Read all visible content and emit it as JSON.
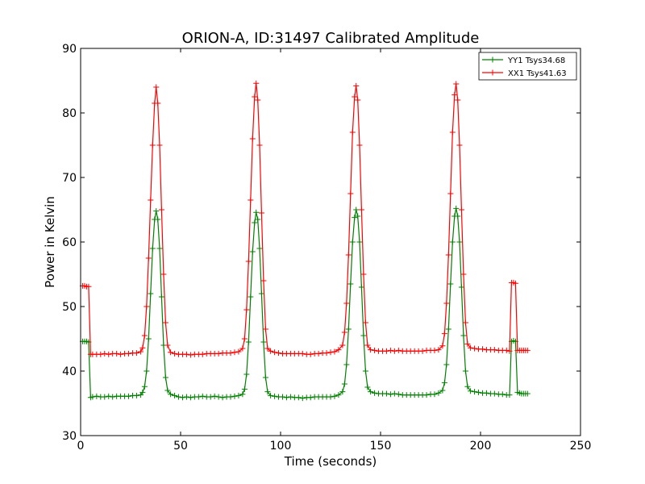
{
  "chart_data": {
    "type": "line",
    "title": "ORION-A, ID:31497 Calibrated Amplitude",
    "xlabel": "Time (seconds)",
    "ylabel": "Power in Kelvin",
    "xlim": [
      0,
      250
    ],
    "ylim": [
      30,
      90
    ],
    "xticks": [
      0,
      50,
      100,
      150,
      200,
      250
    ],
    "yticks": [
      30,
      40,
      50,
      60,
      70,
      80,
      90
    ],
    "grid": false,
    "legend_position": "top-right",
    "series": [
      {
        "name": "YY1 Tsys34.68",
        "color": "#008000",
        "marker": "+",
        "points": [
          [
            1,
            44.6
          ],
          [
            2,
            44.6
          ],
          [
            3,
            44.6
          ],
          [
            4,
            44.5
          ],
          [
            5,
            35.9
          ],
          [
            6,
            36.0
          ],
          [
            8,
            36.1
          ],
          [
            10,
            36.0
          ],
          [
            12,
            36.0
          ],
          [
            14,
            36.1
          ],
          [
            16,
            36.0
          ],
          [
            18,
            36.1
          ],
          [
            20,
            36.1
          ],
          [
            22,
            36.1
          ],
          [
            24,
            36.1
          ],
          [
            26,
            36.2
          ],
          [
            28,
            36.2
          ],
          [
            30,
            36.3
          ],
          [
            31,
            36.7
          ],
          [
            32,
            37.6
          ],
          [
            33,
            40.0
          ],
          [
            34,
            45.0
          ],
          [
            35,
            52.0
          ],
          [
            36,
            59.0
          ],
          [
            37,
            63.5
          ],
          [
            37.8,
            64.8
          ],
          [
            38.6,
            63.5
          ],
          [
            39.5,
            59.0
          ],
          [
            40.5,
            51.5
          ],
          [
            41.5,
            44.0
          ],
          [
            42.5,
            39.0
          ],
          [
            43.5,
            37.0
          ],
          [
            45,
            36.4
          ],
          [
            47,
            36.2
          ],
          [
            49,
            36.0
          ],
          [
            51,
            35.9
          ],
          [
            53,
            36.0
          ],
          [
            55,
            35.9
          ],
          [
            57,
            36.0
          ],
          [
            59,
            36.0
          ],
          [
            61,
            36.1
          ],
          [
            63,
            36.0
          ],
          [
            65,
            36.0
          ],
          [
            67,
            36.1
          ],
          [
            69,
            36.0
          ],
          [
            71,
            35.9
          ],
          [
            73,
            36.0
          ],
          [
            75,
            36.0
          ],
          [
            77,
            36.1
          ],
          [
            79,
            36.2
          ],
          [
            81,
            36.4
          ],
          [
            82,
            37.2
          ],
          [
            83,
            39.5
          ],
          [
            84,
            44.5
          ],
          [
            85,
            51.5
          ],
          [
            86,
            58.5
          ],
          [
            87,
            63.0
          ],
          [
            87.8,
            64.6
          ],
          [
            88.6,
            63.5
          ],
          [
            89.5,
            59.0
          ],
          [
            90.5,
            52.0
          ],
          [
            91.5,
            44.5
          ],
          [
            92.5,
            39.0
          ],
          [
            93.5,
            36.8
          ],
          [
            95,
            36.2
          ],
          [
            97,
            36.1
          ],
          [
            99,
            36.0
          ],
          [
            101,
            36.0
          ],
          [
            103,
            35.9
          ],
          [
            105,
            36.0
          ],
          [
            107,
            35.9
          ],
          [
            109,
            35.9
          ],
          [
            111,
            35.8
          ],
          [
            113,
            35.9
          ],
          [
            115,
            35.9
          ],
          [
            117,
            36.0
          ],
          [
            119,
            36.0
          ],
          [
            121,
            36.0
          ],
          [
            123,
            36.0
          ],
          [
            125,
            36.0
          ],
          [
            127,
            36.1
          ],
          [
            129,
            36.3
          ],
          [
            131,
            36.8
          ],
          [
            132,
            38.0
          ],
          [
            133,
            41.0
          ],
          [
            134,
            46.5
          ],
          [
            135,
            53.5
          ],
          [
            136,
            60.0
          ],
          [
            137,
            63.8
          ],
          [
            137.8,
            65.0
          ],
          [
            138.6,
            64.0
          ],
          [
            139.5,
            60.0
          ],
          [
            140.5,
            53.0
          ],
          [
            141.5,
            45.5
          ],
          [
            142.5,
            40.0
          ],
          [
            143.5,
            37.5
          ],
          [
            145,
            36.8
          ],
          [
            147,
            36.6
          ],
          [
            149,
            36.5
          ],
          [
            151,
            36.5
          ],
          [
            153,
            36.5
          ],
          [
            155,
            36.4
          ],
          [
            157,
            36.5
          ],
          [
            159,
            36.4
          ],
          [
            161,
            36.3
          ],
          [
            163,
            36.3
          ],
          [
            165,
            36.3
          ],
          [
            167,
            36.3
          ],
          [
            169,
            36.3
          ],
          [
            171,
            36.3
          ],
          [
            173,
            36.3
          ],
          [
            175,
            36.4
          ],
          [
            177,
            36.4
          ],
          [
            179,
            36.6
          ],
          [
            181,
            37.0
          ],
          [
            182,
            38.2
          ],
          [
            183,
            41.0
          ],
          [
            184,
            46.5
          ],
          [
            185,
            53.5
          ],
          [
            186,
            60.0
          ],
          [
            187,
            64.0
          ],
          [
            187.8,
            65.2
          ],
          [
            188.6,
            64.0
          ],
          [
            189.5,
            60.0
          ],
          [
            190.5,
            53.0
          ],
          [
            191.5,
            45.5
          ],
          [
            192.5,
            40.0
          ],
          [
            193.5,
            37.6
          ],
          [
            195,
            36.9
          ],
          [
            197,
            36.8
          ],
          [
            199,
            36.7
          ],
          [
            201,
            36.6
          ],
          [
            203,
            36.6
          ],
          [
            205,
            36.5
          ],
          [
            207,
            36.5
          ],
          [
            209,
            36.4
          ],
          [
            211,
            36.4
          ],
          [
            213,
            36.3
          ],
          [
            214.5,
            36.3
          ],
          [
            215.5,
            44.6
          ],
          [
            216.5,
            44.7
          ],
          [
            217.5,
            44.6
          ],
          [
            218.5,
            36.7
          ],
          [
            219.5,
            36.6
          ],
          [
            220.5,
            36.5
          ],
          [
            221.5,
            36.5
          ],
          [
            222.5,
            36.5
          ],
          [
            223.5,
            36.5
          ]
        ]
      },
      {
        "name": "XX1 Tsys41.63",
        "color": "#ff0000",
        "marker": "+",
        "points": [
          [
            1,
            53.2
          ],
          [
            2,
            53.2
          ],
          [
            3,
            53.1
          ],
          [
            4,
            53.1
          ],
          [
            5,
            42.6
          ],
          [
            6,
            42.6
          ],
          [
            8,
            42.6
          ],
          [
            10,
            42.6
          ],
          [
            12,
            42.7
          ],
          [
            14,
            42.6
          ],
          [
            16,
            42.7
          ],
          [
            18,
            42.7
          ],
          [
            20,
            42.6
          ],
          [
            22,
            42.7
          ],
          [
            24,
            42.7
          ],
          [
            26,
            42.8
          ],
          [
            28,
            42.8
          ],
          [
            30,
            43.0
          ],
          [
            31,
            43.6
          ],
          [
            32,
            45.5
          ],
          [
            33,
            50.0
          ],
          [
            34,
            57.5
          ],
          [
            35,
            66.5
          ],
          [
            36,
            75.0
          ],
          [
            37,
            81.5
          ],
          [
            37.8,
            84.0
          ],
          [
            38.6,
            81.5
          ],
          [
            39.5,
            75.0
          ],
          [
            40.5,
            65.0
          ],
          [
            41.5,
            55.0
          ],
          [
            42.5,
            47.5
          ],
          [
            43.5,
            44.0
          ],
          [
            45,
            42.9
          ],
          [
            47,
            42.7
          ],
          [
            49,
            42.6
          ],
          [
            51,
            42.6
          ],
          [
            53,
            42.6
          ],
          [
            55,
            42.5
          ],
          [
            57,
            42.6
          ],
          [
            59,
            42.6
          ],
          [
            61,
            42.6
          ],
          [
            63,
            42.7
          ],
          [
            65,
            42.7
          ],
          [
            67,
            42.7
          ],
          [
            69,
            42.7
          ],
          [
            71,
            42.8
          ],
          [
            73,
            42.8
          ],
          [
            75,
            42.8
          ],
          [
            77,
            42.9
          ],
          [
            79,
            43.0
          ],
          [
            81,
            43.5
          ],
          [
            82,
            45.0
          ],
          [
            83,
            49.5
          ],
          [
            84,
            57.0
          ],
          [
            85,
            66.5
          ],
          [
            86,
            76.0
          ],
          [
            87,
            82.5
          ],
          [
            87.8,
            84.6
          ],
          [
            88.6,
            82.0
          ],
          [
            89.5,
            75.0
          ],
          [
            90.5,
            64.5
          ],
          [
            91.5,
            54.0
          ],
          [
            92.5,
            46.5
          ],
          [
            93.5,
            43.5
          ],
          [
            95,
            43.1
          ],
          [
            97,
            42.9
          ],
          [
            99,
            42.8
          ],
          [
            101,
            42.7
          ],
          [
            103,
            42.7
          ],
          [
            105,
            42.7
          ],
          [
            107,
            42.7
          ],
          [
            109,
            42.7
          ],
          [
            111,
            42.7
          ],
          [
            113,
            42.6
          ],
          [
            115,
            42.6
          ],
          [
            117,
            42.7
          ],
          [
            119,
            42.7
          ],
          [
            121,
            42.8
          ],
          [
            123,
            42.8
          ],
          [
            125,
            42.9
          ],
          [
            127,
            43.0
          ],
          [
            129,
            43.3
          ],
          [
            131,
            44.0
          ],
          [
            132,
            46.0
          ],
          [
            133,
            50.5
          ],
          [
            134,
            58.0
          ],
          [
            135,
            67.5
          ],
          [
            136,
            77.0
          ],
          [
            137,
            82.5
          ],
          [
            137.8,
            84.2
          ],
          [
            138.6,
            82.0
          ],
          [
            139.5,
            75.0
          ],
          [
            140.5,
            65.0
          ],
          [
            141.5,
            55.0
          ],
          [
            142.5,
            47.5
          ],
          [
            143.5,
            44.0
          ],
          [
            145,
            43.3
          ],
          [
            147,
            43.2
          ],
          [
            149,
            43.1
          ],
          [
            151,
            43.1
          ],
          [
            153,
            43.1
          ],
          [
            155,
            43.2
          ],
          [
            157,
            43.1
          ],
          [
            159,
            43.2
          ],
          [
            161,
            43.1
          ],
          [
            163,
            43.1
          ],
          [
            165,
            43.1
          ],
          [
            167,
            43.1
          ],
          [
            169,
            43.1
          ],
          [
            171,
            43.1
          ],
          [
            173,
            43.2
          ],
          [
            175,
            43.2
          ],
          [
            177,
            43.2
          ],
          [
            179,
            43.3
          ],
          [
            181,
            43.9
          ],
          [
            182,
            45.8
          ],
          [
            183,
            50.5
          ],
          [
            184,
            58.0
          ],
          [
            185,
            67.5
          ],
          [
            186,
            77.0
          ],
          [
            187,
            82.8
          ],
          [
            187.8,
            84.5
          ],
          [
            188.6,
            82.0
          ],
          [
            189.5,
            75.0
          ],
          [
            190.5,
            65.0
          ],
          [
            191.5,
            55.0
          ],
          [
            192.5,
            47.5
          ],
          [
            193.5,
            44.2
          ],
          [
            195,
            43.6
          ],
          [
            197,
            43.5
          ],
          [
            199,
            43.4
          ],
          [
            201,
            43.4
          ],
          [
            203,
            43.3
          ],
          [
            205,
            43.3
          ],
          [
            207,
            43.3
          ],
          [
            209,
            43.2
          ],
          [
            211,
            43.2
          ],
          [
            213,
            43.2
          ],
          [
            214.5,
            43.1
          ],
          [
            215.5,
            53.7
          ],
          [
            216.5,
            53.7
          ],
          [
            217.5,
            53.6
          ],
          [
            218.5,
            43.2
          ],
          [
            219.5,
            43.2
          ],
          [
            220.5,
            43.2
          ],
          [
            221.5,
            43.2
          ],
          [
            222.5,
            43.2
          ],
          [
            223.5,
            43.2
          ]
        ]
      }
    ]
  }
}
